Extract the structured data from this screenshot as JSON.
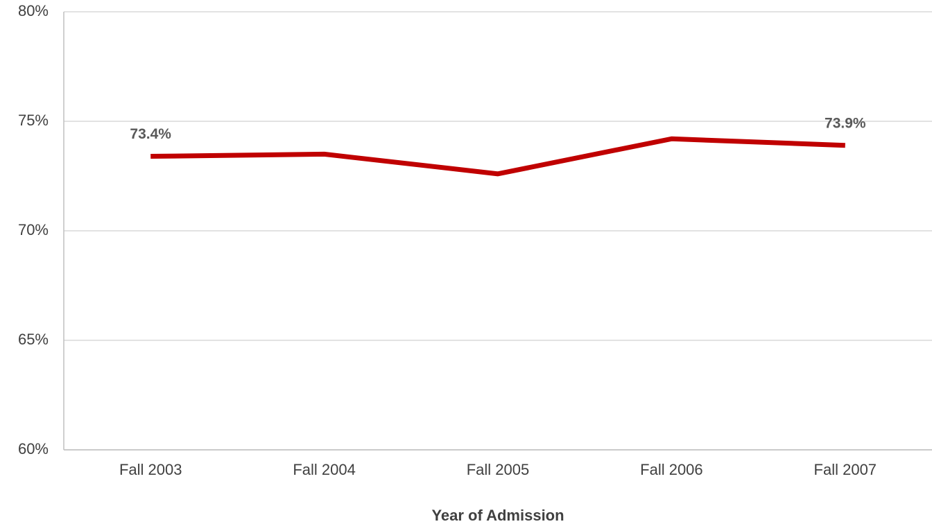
{
  "chart_data": {
    "type": "line",
    "x_label": "Year of Admission",
    "categories": [
      "Fall 2003",
      "Fall 2004",
      "Fall 2005",
      "Fall 2006",
      "Fall 2007"
    ],
    "values": [
      73.4,
      73.5,
      72.6,
      74.2,
      73.9
    ],
    "value_labels": [
      "73.4%",
      null,
      null,
      null,
      "73.9%"
    ],
    "color": "#c00000",
    "ylim": [
      60,
      80
    ],
    "yticks": [
      {
        "value": 60,
        "label": "60%"
      },
      {
        "value": 65,
        "label": "65%"
      },
      {
        "value": 70,
        "label": "70%"
      },
      {
        "value": 75,
        "label": "75%"
      },
      {
        "value": 80,
        "label": "80%"
      }
    ],
    "grid": true
  }
}
